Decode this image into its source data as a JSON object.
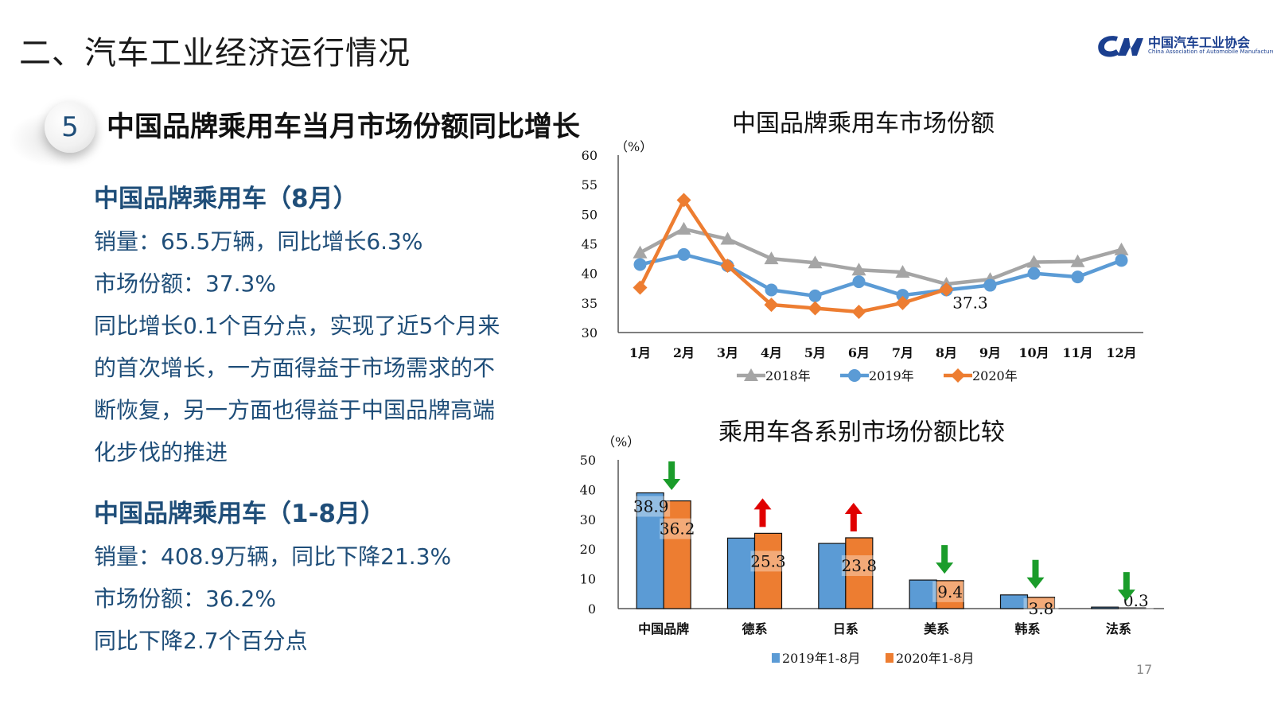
{
  "header": {
    "page_title": "二、汽车工业经济运行情况",
    "logo_cn": "中国汽车工业协会",
    "logo_en": "China Association of Automobile Manufacturers"
  },
  "section": {
    "number": "5",
    "title": "中国品牌乘用车当月市场份额同比增长"
  },
  "left": {
    "block1": {
      "heading": "中国品牌乘用车（8月）",
      "lines": [
        "销量：65.5万辆，同比增长6.3%",
        "市场份额：37.3%",
        "同比增长0.1个百分点，实现了近5个月来",
        "的首次增长，一方面得益于市场需求的不",
        "断恢复，另一方面也得益于中国品牌高端",
        "化步伐的推进"
      ]
    },
    "block2": {
      "heading": "中国品牌乘用车（1-8月）",
      "lines": [
        "销量：408.9万辆，同比下降21.3%",
        "市场份额：36.2%",
        "同比下降2.7个百分点"
      ]
    }
  },
  "page_number": "17",
  "chart_data": [
    {
      "type": "line",
      "title": "中国品牌乘用车市场份额",
      "unit_label": "（%）",
      "categories": [
        "1月",
        "2月",
        "3月",
        "4月",
        "5月",
        "6月",
        "7月",
        "8月",
        "9月",
        "10月",
        "11月",
        "12月"
      ],
      "ylim": [
        30,
        60
      ],
      "yticks": [
        30,
        35,
        40,
        45,
        50,
        55,
        60
      ],
      "grid": false,
      "legend_position": "bottom",
      "series": [
        {
          "name": "2018年",
          "color": "#a5a5a5",
          "marker": "triangle",
          "values": [
            43.5,
            47.5,
            45.8,
            42.5,
            41.8,
            40.6,
            40.2,
            38.2,
            39.0,
            41.9,
            42.0,
            44.0
          ]
        },
        {
          "name": "2019年",
          "color": "#5b9bd5",
          "marker": "circle",
          "values": [
            41.5,
            43.2,
            41.3,
            37.2,
            36.2,
            38.6,
            36.3,
            37.2,
            38.0,
            40.0,
            39.4,
            42.2
          ]
        },
        {
          "name": "2020年",
          "color": "#ed7d31",
          "marker": "diamond",
          "values": [
            37.6,
            52.4,
            41.3,
            34.7,
            34.1,
            33.5,
            35.0,
            37.3,
            null,
            null,
            null,
            null
          ]
        }
      ],
      "annotations": [
        {
          "text": "37.3",
          "x": "8月"
        }
      ]
    },
    {
      "type": "bar",
      "title": "乘用车各系别市场份额比较",
      "unit_label": "（%）",
      "categories": [
        "中国品牌",
        "德系",
        "日系",
        "美系",
        "韩系",
        "法系"
      ],
      "ylim": [
        0,
        50
      ],
      "yticks": [
        0,
        10,
        20,
        30,
        40,
        50
      ],
      "grid": false,
      "legend_position": "bottom",
      "series": [
        {
          "name": "2019年1-8月",
          "color": "#5b9bd5",
          "values": [
            38.9,
            23.7,
            21.9,
            9.6,
            4.6,
            0.5
          ]
        },
        {
          "name": "2020年1-8月",
          "color": "#ed7d31",
          "values": [
            36.2,
            25.3,
            23.8,
            9.4,
            3.8,
            0.3
          ]
        }
      ],
      "data_labels": [
        "38.9",
        "36.2",
        "25.3",
        "23.8",
        "9.4",
        "3.8",
        "0.3"
      ],
      "trend_arrows": [
        {
          "category": "中国品牌",
          "direction": "down",
          "color": "#1a9c2a"
        },
        {
          "category": "德系",
          "direction": "up",
          "color": "#e00000"
        },
        {
          "category": "日系",
          "direction": "up",
          "color": "#e00000"
        },
        {
          "category": "美系",
          "direction": "down",
          "color": "#1a9c2a"
        },
        {
          "category": "韩系",
          "direction": "down",
          "color": "#1a9c2a"
        },
        {
          "category": "法系",
          "direction": "down",
          "color": "#1a9c2a"
        }
      ]
    }
  ]
}
